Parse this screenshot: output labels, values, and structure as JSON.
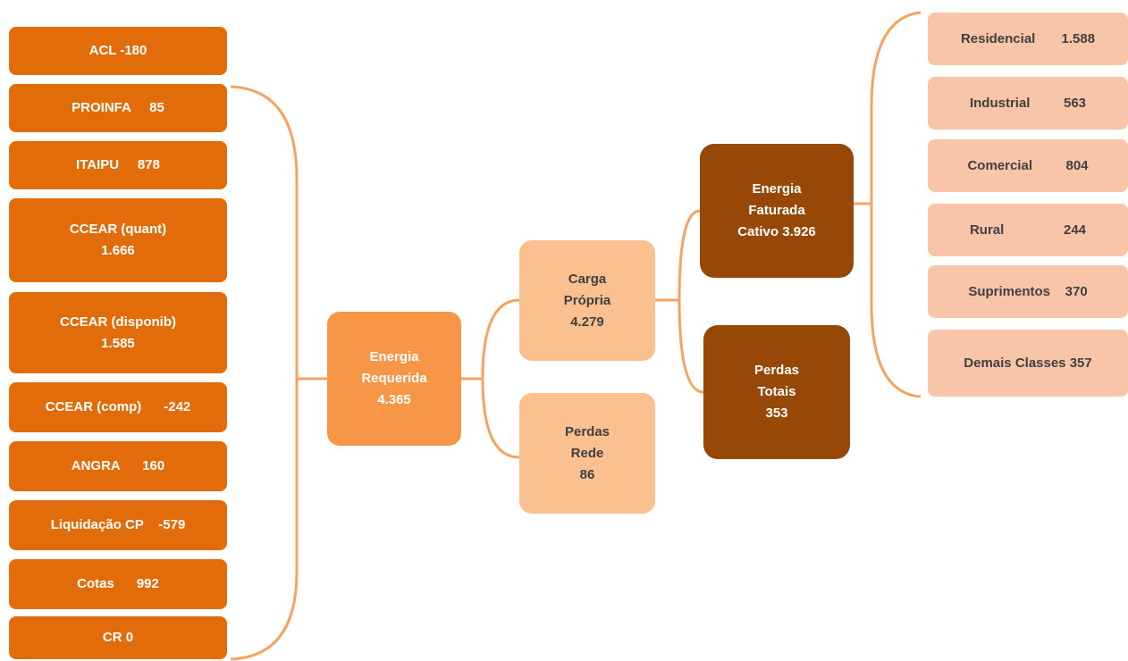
{
  "nodes": [
    {
      "lines": [
        "ACL -180"
      ]
    },
    {
      "lines": [
        "PROINFA     85"
      ]
    },
    {
      "lines": [
        "ITAIPU     878"
      ]
    },
    {
      "lines": [
        "CCEAR (quant)",
        "1.666"
      ]
    },
    {
      "lines": [
        "CCEAR (disponib)",
        "1.585"
      ]
    },
    {
      "lines": [
        "CCEAR (comp)      -242"
      ]
    },
    {
      "lines": [
        "ANGRA      160"
      ]
    },
    {
      "lines": [
        "Liquidação CP    -579"
      ]
    },
    {
      "lines": [
        "Cotas      992"
      ]
    },
    {
      "lines": [
        "CR 0"
      ]
    },
    {
      "lines": [
        "Energia",
        "Requerida",
        "4.365"
      ]
    },
    {
      "lines": [
        "Carga",
        "Própria",
        "4.279"
      ]
    },
    {
      "lines": [
        "Perdas",
        "Rede",
        "86"
      ]
    },
    {
      "lines": [
        "Energia",
        "Faturada",
        "Cativo 3.926"
      ]
    },
    {
      "lines": [
        "Perdas",
        "Totais",
        "353"
      ]
    },
    {
      "lines": [
        "Residencial       1.588"
      ]
    },
    {
      "lines": [
        "Industrial         563"
      ]
    },
    {
      "lines": [
        "Comercial         804"
      ]
    },
    {
      "lines": [
        "Rural                244"
      ]
    },
    {
      "lines": [
        "Suprimentos    370"
      ]
    },
    {
      "lines": [
        "Demais Classes 357"
      ]
    }
  ]
}
